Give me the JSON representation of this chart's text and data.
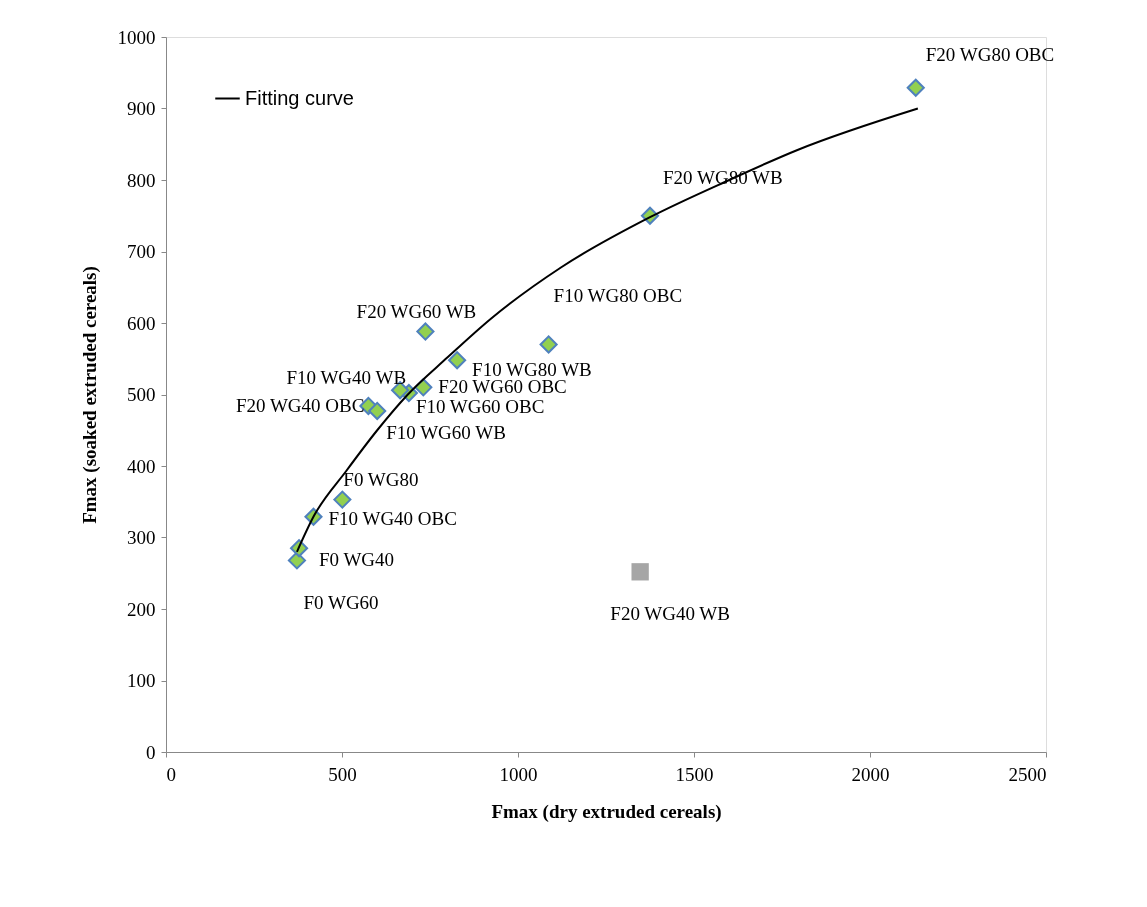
{
  "chart_data": {
    "type": "scatter",
    "xlabel": "Fmax (dry extruded cereals)",
    "ylabel": "Fmax (soaked extruded cereals)",
    "xlim": [
      0,
      2500
    ],
    "xticks": [
      0,
      500,
      1000,
      1500,
      2000,
      2500
    ],
    "ylim": [
      0,
      1000
    ],
    "yticks": [
      0,
      100,
      200,
      300,
      400,
      500,
      600,
      700,
      800,
      900,
      1000
    ],
    "grid": false,
    "legend": "top left",
    "series": [
      {
        "marker": "diamond",
        "color": "#92d050",
        "x": [
          2130,
          1375,
          737,
          1087,
          827,
          731,
          690,
          665,
          575,
          600,
          501,
          419,
          372,
          378
        ],
        "values": [
          929,
          750,
          588,
          570,
          548,
          510,
          502,
          506,
          484,
          477,
          353,
          329,
          268,
          285
        ]
      },
      {
        "marker": "square",
        "color": "#a6a6a6",
        "x": [
          1347
        ],
        "values": [
          252
        ]
      },
      {
        "type": "line",
        "marker": "none",
        "line_style": "solid",
        "name": "Fitting curve",
        "color": "#000000",
        "x": [
          372,
          420,
          512,
          600,
          685,
          800,
          923,
          1123,
          1375,
          1600,
          1794,
          2136
        ],
        "values": [
          280,
          330,
          393,
          450,
          499,
          552,
          606,
          678,
          748,
          800,
          842,
          900
        ]
      }
    ],
    "annotations": [
      {
        "text": "F20 WG80 OBC",
        "x": 2130,
        "y": 929
      },
      {
        "text": "F20 WG80 WB",
        "x": 1375,
        "y": 750
      },
      {
        "text": "F20 WG60 WB",
        "x": 737,
        "y": 588
      },
      {
        "text": "F10 WG80 OBC",
        "x": 1087,
        "y": 570
      },
      {
        "text": "F10 WG80 WB",
        "x": 827,
        "y": 548
      },
      {
        "text": "F20 WG60 OBC",
        "x": 731,
        "y": 510
      },
      {
        "text": "F10 WG60 OBC",
        "x": 690,
        "y": 502
      },
      {
        "text": "F10 WG40 WB",
        "x": 665,
        "y": 506
      },
      {
        "text": "F20 WG40 OBC",
        "x": 575,
        "y": 484
      },
      {
        "text": "F10 WG60 WB",
        "x": 600,
        "y": 477
      },
      {
        "text": "F0 WG80",
        "x": 501,
        "y": 353
      },
      {
        "text": "F10 WG40 OBC",
        "x": 419,
        "y": 329
      },
      {
        "text": "F0 WG40",
        "x": 372,
        "y": 268
      },
      {
        "text": "F0 WG60",
        "x": 378,
        "y": 285
      },
      {
        "text": "F20 WG40 WB",
        "x": 1347,
        "y": 252
      }
    ]
  }
}
